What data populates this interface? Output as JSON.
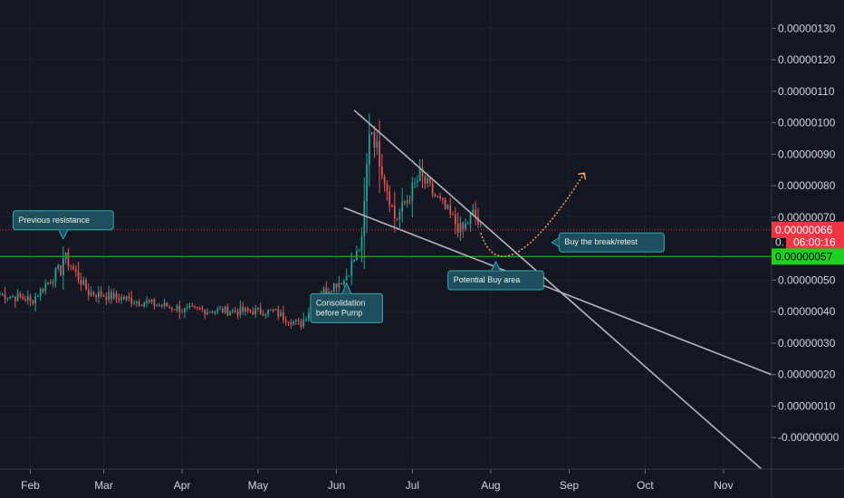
{
  "chart_data": {
    "type": "candlestick",
    "y_axis": {
      "ticks": [
        "0.00000130",
        "0.00000120",
        "0.00000110",
        "0.00000100",
        "0.00000090",
        "0.00000080",
        "0.00000070",
        "0.00000050",
        "0.00000040",
        "0.00000030",
        "0.00000020",
        "0.00000010",
        "-0.00000000"
      ],
      "tick_values": [
        1.3e-06,
        1.2e-06,
        1.1e-06,
        1e-06,
        9e-07,
        8e-07,
        7e-07,
        5e-07,
        4e-07,
        3e-07,
        2e-07,
        1e-07,
        0.0
      ],
      "ylim": [
        -1e-07,
        1.39e-06
      ]
    },
    "x_axis": {
      "labels": [
        "Feb",
        "Mar",
        "Apr",
        "May",
        "Jun",
        "Jul",
        "Aug",
        "Sep",
        "Oct",
        "Nov"
      ],
      "dates": [
        "2020-02-01",
        "2020-03-01",
        "2020-04-01",
        "2020-05-01",
        "2020-06-01",
        "2020-07-01",
        "2020-08-01",
        "2020-09-01",
        "2020-10-01",
        "2020-11-01"
      ],
      "xlim": [
        "2020-01-20",
        "2020-11-20"
      ]
    },
    "close_segments": [
      {
        "from": "2020-01-20",
        "to": "2020-01-31",
        "close": [
          4.55e-07,
          4.4e-07
        ]
      },
      {
        "from": "2020-02-01",
        "to": "2020-02-12",
        "close": [
          4.3e-07,
          5.3e-07
        ]
      },
      {
        "from": "2020-02-13",
        "to": "2020-02-14",
        "close": [
          5.3e-07,
          5.7e-07
        ]
      },
      {
        "from": "2020-02-15",
        "to": "2020-02-24",
        "close": [
          5.7e-07,
          4.6e-07
        ]
      },
      {
        "from": "2020-02-25",
        "to": "2020-03-31",
        "close": [
          4.6e-07,
          4.1e-07
        ]
      },
      {
        "from": "2020-04-01",
        "to": "2020-05-06",
        "close": [
          4.05e-07,
          4e-07
        ]
      },
      {
        "from": "2020-05-07",
        "to": "2020-05-17",
        "close": [
          4e-07,
          3.6e-07
        ]
      },
      {
        "from": "2020-05-18",
        "to": "2020-05-25",
        "close": [
          3.6e-07,
          4.6e-07
        ]
      },
      {
        "from": "2020-05-26",
        "to": "2020-06-03",
        "close": [
          4.6e-07,
          5e-07
        ]
      },
      {
        "from": "2020-06-04",
        "to": "2020-06-10",
        "close": [
          5e-07,
          6e-07
        ]
      },
      {
        "from": "2020-06-11",
        "to": "2020-06-14",
        "close": [
          6.2e-07,
          9.8e-07
        ]
      },
      {
        "from": "2020-06-15",
        "to": "2020-06-24",
        "close": [
          9.8e-07,
          7e-07
        ]
      },
      {
        "from": "2020-06-25",
        "to": "2020-07-04",
        "close": [
          7e-07,
          8.3e-07
        ]
      },
      {
        "from": "2020-07-05",
        "to": "2020-07-20",
        "close": [
          8.2e-07,
          6.6e-07
        ]
      },
      {
        "from": "2020-07-21",
        "to": "2020-07-25",
        "close": [
          6.6e-07,
          7.1e-07
        ]
      },
      {
        "from": "2020-07-26",
        "to": "2020-07-28",
        "close": [
          7e-07,
          6.6e-07
        ]
      }
    ],
    "horizontal_lines": [
      {
        "name": "previous-resistance-line",
        "value": 5.75e-07,
        "color": "#1e9e1e"
      },
      {
        "name": "current-price-line",
        "value": 6.6e-07,
        "color": "#f23645",
        "style": "dotted"
      }
    ],
    "trendlines": [
      {
        "name": "upper-trendline",
        "from": {
          "date": "2020-06-08",
          "value": 1.04e-06
        },
        "to": {
          "date": "2020-11-16",
          "value": -1e-07
        }
      },
      {
        "name": "lower-trendline",
        "from": {
          "date": "2020-06-04",
          "value": 7.3e-07
        },
        "to": {
          "date": "2020-11-20",
          "value": 2e-07
        }
      }
    ],
    "projection_path": {
      "name": "projected-path",
      "color": "#f7a35c",
      "from": {
        "date": "2020-07-28",
        "value": 6.5e-07
      },
      "control": {
        "date": "2020-08-06",
        "value": 5.5e-07
      },
      "to": {
        "date": "2020-09-07",
        "value": 8.4e-07
      }
    },
    "annotations": [
      {
        "name": "previous-resistance",
        "text": "Previous resistance",
        "date": "2020-02-14",
        "value": 6.6e-07,
        "lines": [
          "Previous resistance"
        ]
      },
      {
        "name": "consolidation-before-pump",
        "text": "Consolidation before Pump",
        "date": "2020-06-05",
        "value": 4.8e-07,
        "lines": [
          "Consolidation",
          "before Pump"
        ]
      },
      {
        "name": "potential-buy-area",
        "text": "Potential Buy area",
        "date": "2020-08-03",
        "value": 5.3e-07,
        "lines": [
          "Potential Buy area"
        ]
      },
      {
        "name": "buy-the-break-retest",
        "text": "Buy the break/retest",
        "date": "2020-08-28",
        "value": 6.2e-07,
        "lines": [
          "Buy the break/retest"
        ]
      }
    ],
    "price_labels": [
      {
        "name": "last-price-badge",
        "value": 6.6e-07,
        "text": "0.00000066",
        "bg": "#f23645",
        "fg": "#ffffff"
      },
      {
        "name": "countdown-badge",
        "value": 6.2e-07,
        "text": "06:00:16",
        "bg": "#f23645",
        "fg": "#ffffff",
        "prefix": "0."
      },
      {
        "name": "resistance-price-badge",
        "value": 5.75e-07,
        "text": "0.00000057",
        "bg": "#1ed01e",
        "fg": "#000000"
      }
    ],
    "colors": {
      "background": "#131722",
      "grid": "#1e222d",
      "axis_text": "#d1d4dc",
      "up": "#26a69a",
      "down": "#ef5350",
      "trendline": "#b2b5be",
      "annotation_bg": "#1f4e5c",
      "annotation_border": "#3aa9b5"
    }
  }
}
